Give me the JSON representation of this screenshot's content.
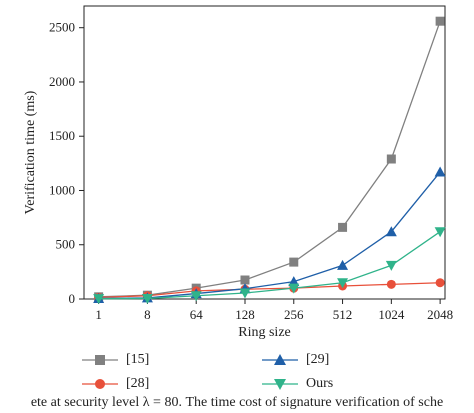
{
  "chart_data": {
    "type": "line",
    "categories": [
      "1",
      "8",
      "64",
      "128",
      "256",
      "512",
      "1024",
      "2048"
    ],
    "xlabel": "Ring size",
    "ylabel": "Verification time (ms)",
    "ylim": [
      0,
      2700
    ],
    "yticks": [
      0,
      500,
      1000,
      1500,
      2000,
      2500
    ],
    "grid": false,
    "legend_position": "bottom",
    "series": [
      {
        "name": "[15]",
        "color": "#808080",
        "marker": "square",
        "values": [
          20,
          35,
          100,
          175,
          340,
          660,
          1290,
          2560
        ]
      },
      {
        "name": "[28]",
        "color": "#e8503a",
        "marker": "circle",
        "values": [
          15,
          30,
          75,
          90,
          100,
          120,
          135,
          150
        ]
      },
      {
        "name": "[29]",
        "color": "#1f5fa8",
        "marker": "triangle-up",
        "values": [
          5,
          10,
          50,
          95,
          160,
          310,
          620,
          1170
        ]
      },
      {
        "name": "Ours",
        "color": "#2fb38a",
        "marker": "triangle-down",
        "values": [
          3,
          5,
          30,
          55,
          100,
          150,
          310,
          620
        ]
      }
    ]
  },
  "caption": "ete at security level λ = 80. The time cost of signature verification of sche"
}
